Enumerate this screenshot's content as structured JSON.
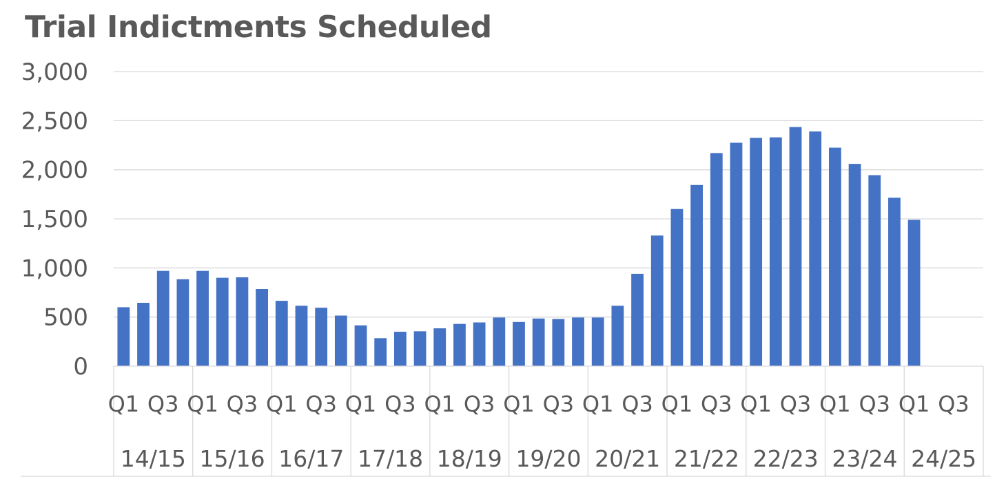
{
  "chart_data": {
    "type": "bar",
    "title": "Trial Indictments Scheduled",
    "xlabel": "",
    "ylabel": "",
    "ylim": [
      0,
      3000
    ],
    "yticks": [
      0,
      500,
      1000,
      1500,
      2000,
      2500,
      3000
    ],
    "ytick_labels": [
      "0",
      "500",
      "1,000",
      "1,500",
      "2,000",
      "2,500",
      "3,000"
    ],
    "grid": true,
    "legend": "none",
    "bar_color": "#4472C4",
    "years": [
      "14/15",
      "15/16",
      "16/17",
      "17/18",
      "18/19",
      "19/20",
      "20/21",
      "21/22",
      "22/23",
      "23/24",
      "24/25"
    ],
    "quarter_labels": [
      "Q1",
      "Q3"
    ],
    "categories": [
      "14/15 Q1",
      "14/15 Q2",
      "14/15 Q3",
      "14/15 Q4",
      "15/16 Q1",
      "15/16 Q2",
      "15/16 Q3",
      "15/16 Q4",
      "16/17 Q1",
      "16/17 Q2",
      "16/17 Q3",
      "16/17 Q4",
      "17/18 Q1",
      "17/18 Q2",
      "17/18 Q3",
      "17/18 Q4",
      "18/19 Q1",
      "18/19 Q2",
      "18/19 Q3",
      "18/19 Q4",
      "19/20 Q1",
      "19/20 Q2",
      "19/20 Q3",
      "19/20 Q4",
      "20/21 Q1",
      "20/21 Q2",
      "20/21 Q3",
      "20/21 Q4",
      "21/22 Q1",
      "21/22 Q2",
      "21/22 Q3",
      "21/22 Q4",
      "22/23 Q1",
      "22/23 Q2",
      "22/23 Q3",
      "22/23 Q4",
      "23/24 Q1",
      "23/24 Q2",
      "23/24 Q3",
      "23/24 Q4",
      "24/25 Q1",
      "24/25 Q2",
      "24/25 Q3",
      "24/25 Q4"
    ],
    "values": [
      600,
      645,
      970,
      885,
      970,
      900,
      905,
      785,
      665,
      615,
      595,
      515,
      415,
      285,
      350,
      355,
      385,
      430,
      445,
      495,
      450,
      485,
      480,
      495,
      495,
      615,
      940,
      1330,
      1600,
      1845,
      2170,
      2275,
      2325,
      2330,
      2435,
      2390,
      2225,
      2060,
      1945,
      1715,
      1490,
      null,
      null,
      null
    ]
  }
}
